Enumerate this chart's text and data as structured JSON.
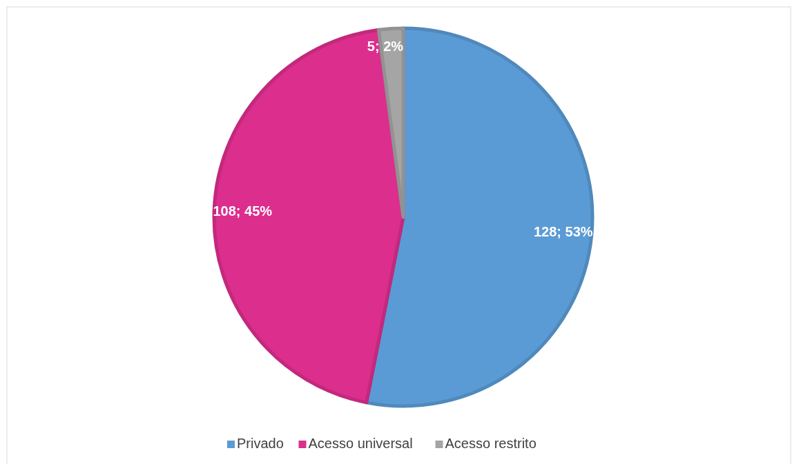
{
  "chart_data": {
    "type": "pie",
    "categories": [
      "Privado",
      "Acesso universal",
      "Acesso restrito"
    ],
    "values": [
      128,
      108,
      5
    ],
    "colors": [
      "#5b9bd5",
      "#dc2e8d",
      "#a5a5a5"
    ],
    "value_labels": [
      "128; 53%",
      "108; 45%",
      "5; 2%"
    ],
    "legend": "bottom"
  }
}
